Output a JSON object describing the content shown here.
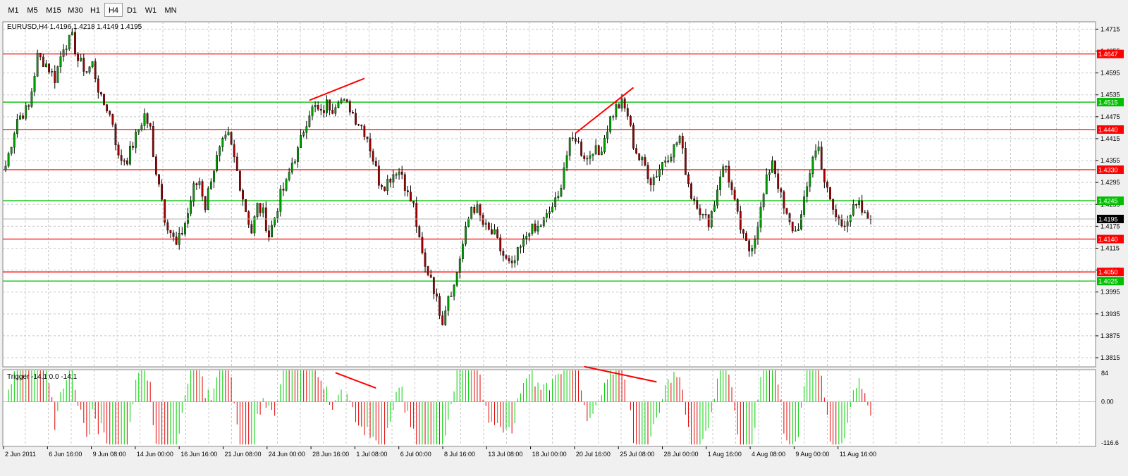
{
  "toolbar": {
    "timeframes": [
      "M1",
      "M5",
      "M15",
      "M30",
      "H1",
      "H4",
      "D1",
      "W1",
      "MN"
    ],
    "active": "H4"
  },
  "chart_data": {
    "type": "candlestick",
    "symbol": "EURUSD",
    "timeframe": "H4",
    "ohlc_header": "EURUSD,H4  1.4196 1.4218 1.4149 1.4195",
    "last_price": "1.4195",
    "price_axis": {
      "min": 1.379,
      "max": 1.4735,
      "tick_labels": [
        "1.4715",
        "1.4655",
        "1.4595",
        "1.4535",
        "1.4475",
        "1.4415",
        "1.4355",
        "1.4295",
        "1.4235",
        "1.4175",
        "1.4115",
        "1.4055",
        "1.3995",
        "1.3935",
        "1.3875",
        "1.3815"
      ]
    },
    "support_resistance": [
      {
        "price": 1.4647,
        "label": "1.4647",
        "color": "#ff0000"
      },
      {
        "price": 1.4515,
        "label": "1.4515",
        "color": "#00c000"
      },
      {
        "price": 1.444,
        "label": "1.4440",
        "color": "#ff0000"
      },
      {
        "price": 1.433,
        "label": "1.4330",
        "color": "#ff0000"
      },
      {
        "price": 1.4245,
        "label": "1.4245",
        "color": "#00c000"
      },
      {
        "price": 1.414,
        "label": "1.4140",
        "color": "#ff0000"
      },
      {
        "price": 1.405,
        "label": "1.4050",
        "color": "#ff0000"
      },
      {
        "price": 1.4025,
        "label": "1.4025",
        "color": "#00c000"
      }
    ],
    "time_axis_labels": [
      "2 Jun 2011",
      "6 Jun 16:00",
      "9 Jun 08:00",
      "14 Jun 00:00",
      "16 Jun 16:00",
      "21 Jun 08:00",
      "24 Jun 00:00",
      "28 Jun 16:00",
      "1 Jul 08:00",
      "6 Jul 00:00",
      "8 Jul 16:00",
      "13 Jul 08:00",
      "18 Jul 00:00",
      "20 Jul 16:00",
      "25 Jul 08:00",
      "28 Jul 00:00",
      "1 Aug 16:00",
      "4 Aug 08:00",
      "9 Aug 00:00",
      "11 Aug 16:00"
    ],
    "price_path": [
      [
        0,
        1.434
      ],
      [
        4,
        1.447
      ],
      [
        8,
        1.45
      ],
      [
        11,
        1.464
      ],
      [
        14,
        1.462
      ],
      [
        17,
        1.458
      ],
      [
        20,
        1.467
      ],
      [
        23,
        1.469
      ],
      [
        25,
        1.463
      ],
      [
        28,
        1.46
      ],
      [
        30,
        1.462
      ],
      [
        33,
        1.452
      ],
      [
        35,
        1.45
      ],
      [
        37,
        1.446
      ],
      [
        39,
        1.436
      ],
      [
        42,
        1.436
      ],
      [
        44,
        1.44
      ],
      [
        46,
        1.444
      ],
      [
        48,
        1.448
      ],
      [
        50,
        1.444
      ],
      [
        51,
        1.436
      ],
      [
        53,
        1.43
      ],
      [
        55,
        1.42
      ],
      [
        57,
        1.416
      ],
      [
        59,
        1.412
      ],
      [
        61,
        1.416
      ],
      [
        63,
        1.421
      ],
      [
        65,
        1.428
      ],
      [
        67,
        1.43
      ],
      [
        69,
        1.423
      ],
      [
        71,
        1.431
      ],
      [
        73,
        1.436
      ],
      [
        75,
        1.44
      ],
      [
        77,
        1.442
      ],
      [
        79,
        1.436
      ],
      [
        81,
        1.429
      ],
      [
        83,
        1.422
      ],
      [
        85,
        1.416
      ],
      [
        87,
        1.423
      ],
      [
        89,
        1.421
      ],
      [
        91,
        1.415
      ],
      [
        93,
        1.42
      ],
      [
        95,
        1.426
      ],
      [
        97,
        1.429
      ],
      [
        99,
        1.435
      ],
      [
        101,
        1.438
      ],
      [
        103,
        1.444
      ],
      [
        105,
        1.449
      ],
      [
        107,
        1.45
      ],
      [
        109,
        1.448
      ],
      [
        111,
        1.451
      ],
      [
        113,
        1.45
      ],
      [
        115,
        1.453
      ],
      [
        117,
        1.451
      ],
      [
        119,
        1.45
      ],
      [
        121,
        1.447
      ],
      [
        123,
        1.445
      ],
      [
        125,
        1.442
      ],
      [
        127,
        1.436
      ],
      [
        129,
        1.43
      ],
      [
        131,
        1.429
      ],
      [
        133,
        1.431
      ],
      [
        135,
        1.433
      ],
      [
        137,
        1.432
      ],
      [
        139,
        1.426
      ],
      [
        141,
        1.423
      ],
      [
        143,
        1.413
      ],
      [
        145,
        1.406
      ],
      [
        147,
        1.404
      ],
      [
        149,
        1.397
      ],
      [
        151,
        1.392
      ],
      [
        153,
        1.399
      ],
      [
        155,
        1.401
      ],
      [
        157,
        1.409
      ],
      [
        159,
        1.416
      ],
      [
        161,
        1.423
      ],
      [
        163,
        1.422
      ],
      [
        165,
        1.418
      ],
      [
        167,
        1.416
      ],
      [
        169,
        1.415
      ],
      [
        171,
        1.411
      ],
      [
        173,
        1.408
      ],
      [
        175,
        1.406
      ],
      [
        177,
        1.41
      ],
      [
        179,
        1.413
      ],
      [
        181,
        1.417
      ],
      [
        183,
        1.416
      ],
      [
        185,
        1.418
      ],
      [
        187,
        1.42
      ],
      [
        189,
        1.423
      ],
      [
        191,
        1.425
      ],
      [
        193,
        1.434
      ],
      [
        195,
        1.44
      ],
      [
        197,
        1.442
      ],
      [
        199,
        1.438
      ],
      [
        201,
        1.436
      ],
      [
        203,
        1.439
      ],
      [
        205,
        1.437
      ],
      [
        207,
        1.442
      ],
      [
        209,
        1.447
      ],
      [
        211,
        1.45
      ],
      [
        213,
        1.451
      ],
      [
        215,
        1.448
      ],
      [
        217,
        1.44
      ],
      [
        219,
        1.436
      ],
      [
        221,
        1.434
      ],
      [
        223,
        1.43
      ],
      [
        225,
        1.432
      ],
      [
        227,
        1.435
      ],
      [
        229,
        1.437
      ],
      [
        231,
        1.439
      ],
      [
        233,
        1.442
      ],
      [
        235,
        1.433
      ],
      [
        237,
        1.426
      ],
      [
        239,
        1.424
      ],
      [
        241,
        1.42
      ],
      [
        243,
        1.419
      ],
      [
        245,
        1.424
      ],
      [
        247,
        1.432
      ],
      [
        249,
        1.434
      ],
      [
        251,
        1.427
      ],
      [
        253,
        1.42
      ],
      [
        255,
        1.414
      ],
      [
        257,
        1.411
      ],
      [
        259,
        1.415
      ],
      [
        261,
        1.422
      ],
      [
        263,
        1.43
      ],
      [
        265,
        1.436
      ],
      [
        267,
        1.429
      ],
      [
        269,
        1.422
      ],
      [
        271,
        1.418
      ],
      [
        273,
        1.416
      ],
      [
        275,
        1.42
      ],
      [
        277,
        1.428
      ],
      [
        279,
        1.437
      ],
      [
        281,
        1.439
      ],
      [
        283,
        1.43
      ],
      [
        285,
        1.424
      ],
      [
        287,
        1.42
      ],
      [
        289,
        1.418
      ],
      [
        291,
        1.42
      ],
      [
        293,
        1.422
      ],
      [
        295,
        1.423
      ],
      [
        297,
        1.42
      ],
      [
        299,
        1.4195
      ]
    ],
    "price_trendline": {
      "from": [
        105,
        1.452
      ],
      "to": [
        124,
        1.458
      ],
      "color": "#ff0000"
    },
    "price_trendline2": {
      "from": [
        197,
        1.443
      ],
      "to": [
        217,
        1.4555
      ],
      "color": "#ff0000"
    },
    "indicator": {
      "name": "Trigger",
      "header": "Trigger -14.1 0.0 -14.1",
      "ylim": [
        -116.6,
        84
      ],
      "tick_labels": [
        "84",
        "0.00",
        "-116.6"
      ],
      "trendline": {
        "from": [
          114,
          76
        ],
        "to": [
          128,
          36
        ],
        "color": "#ff0000"
      },
      "trendline2": {
        "from": [
          200,
          92
        ],
        "to": [
          225,
          52
        ],
        "color": "#ff0000"
      },
      "colors": {
        "up": "#00d000",
        "down": "#e00000"
      }
    },
    "n_bars": 300,
    "colors": {
      "bull": "#00a000",
      "bear": "#a00000",
      "grid": "#c8c8c8",
      "wick": "#000000"
    }
  }
}
